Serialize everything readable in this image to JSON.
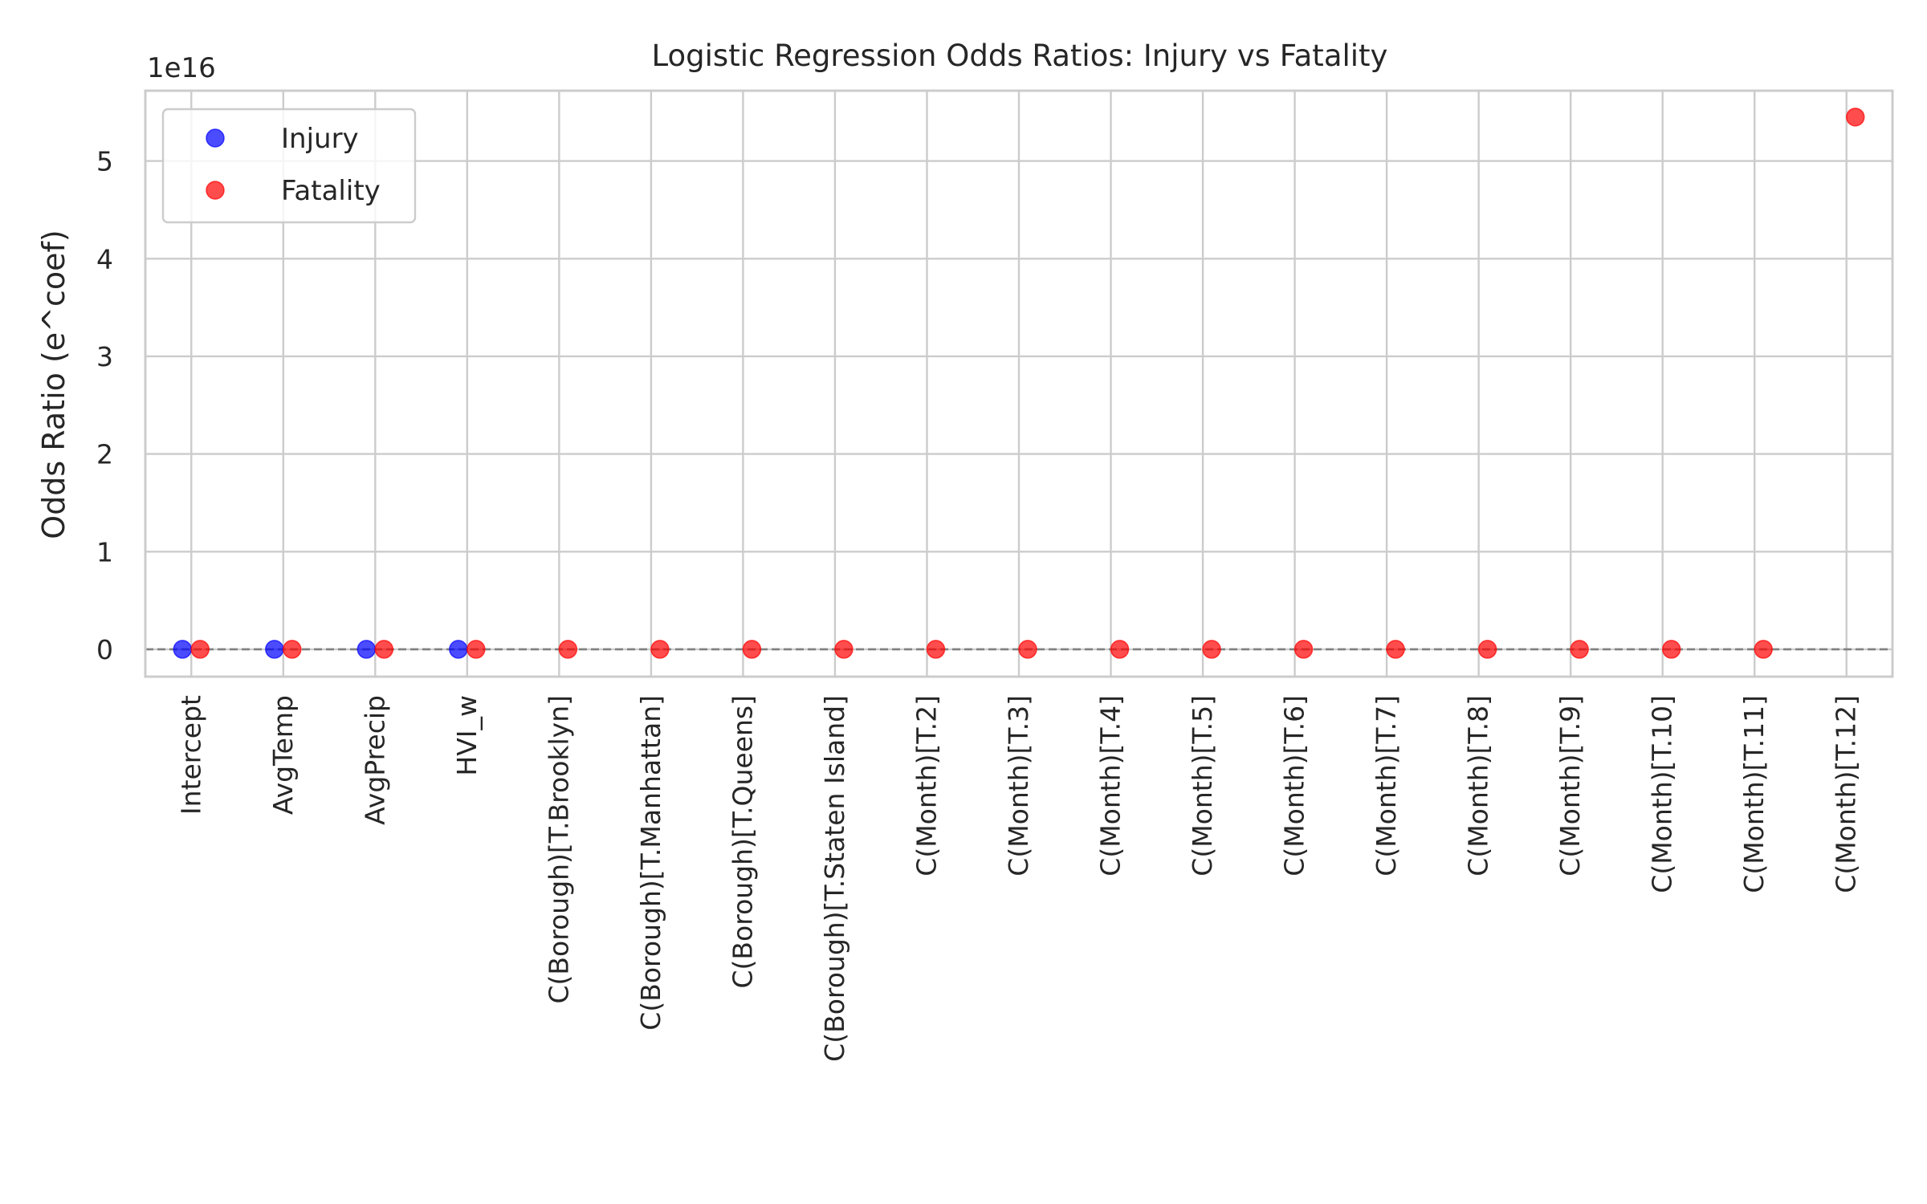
{
  "chart_data": {
    "type": "scatter",
    "title": "Logistic Regression Odds Ratios: Injury vs Fatality",
    "xlabel": "",
    "ylabel": "Odds Ratio (e^coef)",
    "y_offset_text": "1e16",
    "y_scale": 1e+16,
    "ylim": [
      -0.28,
      5.72
    ],
    "yticks": [
      0,
      1,
      2,
      3,
      4,
      5
    ],
    "ytick_labels": [
      "0",
      "1",
      "2",
      "3",
      "4",
      "5"
    ],
    "categories": [
      "Intercept",
      "AvgTemp",
      "AvgPrecip",
      "HVI_w",
      "C(Borough)[T.Brooklyn]",
      "C(Borough)[T.Manhattan]",
      "C(Borough)[T.Queens]",
      "C(Borough)[T.Staten Island]",
      "C(Month)[T.2]",
      "C(Month)[T.3]",
      "C(Month)[T.4]",
      "C(Month)[T.5]",
      "C(Month)[T.6]",
      "C(Month)[T.7]",
      "C(Month)[T.8]",
      "C(Month)[T.9]",
      "C(Month)[T.10]",
      "C(Month)[T.11]",
      "C(Month)[T.12]"
    ],
    "series": [
      {
        "name": "Injury",
        "color": "#0000ff",
        "values": [
          0,
          0,
          0,
          0,
          null,
          null,
          null,
          null,
          null,
          null,
          null,
          null,
          null,
          null,
          null,
          null,
          null,
          null,
          null
        ]
      },
      {
        "name": "Fatality",
        "color": "#ff0000",
        "values": [
          0,
          0,
          0,
          0,
          0,
          0,
          0,
          0,
          0,
          0,
          0,
          0,
          0,
          0,
          0,
          0,
          0,
          0,
          5.45
        ]
      }
    ],
    "reference_line": {
      "y": 1,
      "style": "dashed",
      "color": "#808080"
    },
    "grid": true,
    "legend_position": "top-left",
    "background": "#ffffff",
    "grid_color": "#cccccc"
  }
}
